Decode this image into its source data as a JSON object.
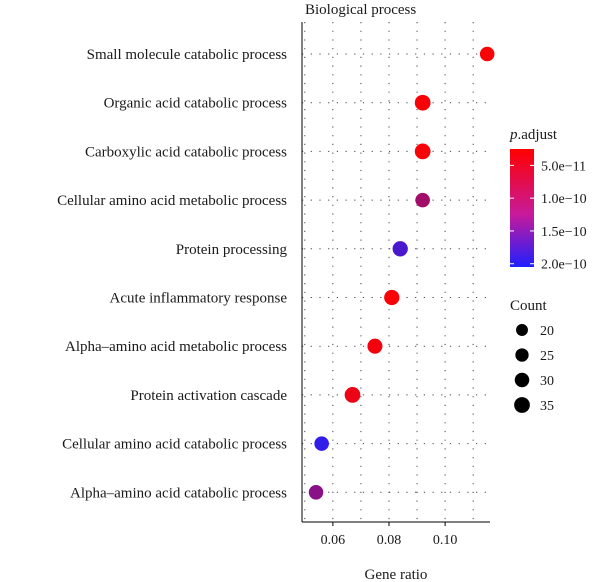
{
  "chart_data": {
    "type": "scatter",
    "facet_title": "Biological process",
    "xlabel": "Gene ratio",
    "ylabel": "",
    "xlim": [
      0.049,
      0.116
    ],
    "x_ticks": [
      0.06,
      0.08,
      0.1
    ],
    "x_tick_labels": [
      "0.06",
      "0.08",
      "0.10"
    ],
    "grid": true,
    "categories": [
      "Small molecule catabolic process",
      "Organic acid catabolic process",
      "Carboxylic acid catabolic process",
      "Cellular amino acid metabolic process",
      "Protein processing",
      "Acute inflammatory response",
      "Alpha–amino acid metabolic process",
      "Protein activation cascade",
      "Cellular amino acid catabolic process",
      "Alpha–amino acid catabolic process"
    ],
    "points": [
      {
        "term": "Small molecule catabolic process",
        "gene_ratio": 0.115,
        "count": 30,
        "p_adjust": 3e-11
      },
      {
        "term": "Organic acid catabolic process",
        "gene_ratio": 0.092,
        "count": 35,
        "p_adjust": 3e-11
      },
      {
        "term": "Carboxylic acid catabolic process",
        "gene_ratio": 0.092,
        "count": 35,
        "p_adjust": 3e-11
      },
      {
        "term": "Cellular amino acid metabolic process",
        "gene_ratio": 0.092,
        "count": 30,
        "p_adjust": 1e-10
      },
      {
        "term": "Protein processing",
        "gene_ratio": 0.084,
        "count": 33,
        "p_adjust": 1.7e-10
      },
      {
        "term": "Acute inflammatory response",
        "gene_ratio": 0.081,
        "count": 33,
        "p_adjust": 3e-11
      },
      {
        "term": "Alpha–amino acid metabolic process",
        "gene_ratio": 0.075,
        "count": 32,
        "p_adjust": 3.5e-11
      },
      {
        "term": "Protein activation cascade",
        "gene_ratio": 0.067,
        "count": 35,
        "p_adjust": 4e-11
      },
      {
        "term": "Cellular amino acid catabolic process",
        "gene_ratio": 0.056,
        "count": 30,
        "p_adjust": 1.9e-10
      },
      {
        "term": "Alpha–amino acid catabolic process",
        "gene_ratio": 0.054,
        "count": 30,
        "p_adjust": 1.2e-10
      }
    ],
    "color_legend": {
      "title_italic": "p",
      "title_rest": ".adjust",
      "min": 2.5e-11,
      "max": 2.05e-10,
      "low_color": "#ff0000",
      "high_color": "#1f1fff",
      "ticks": [
        5e-11,
        1e-10,
        1.5e-10,
        2e-10
      ],
      "tick_labels": [
        "5.0e−11",
        "1.0e−10",
        "1.5e−10",
        "2.0e−10"
      ]
    },
    "size_legend": {
      "title": "Count",
      "values": [
        20,
        25,
        30,
        35
      ],
      "labels": [
        "20",
        "25",
        "30",
        "35"
      ]
    }
  }
}
